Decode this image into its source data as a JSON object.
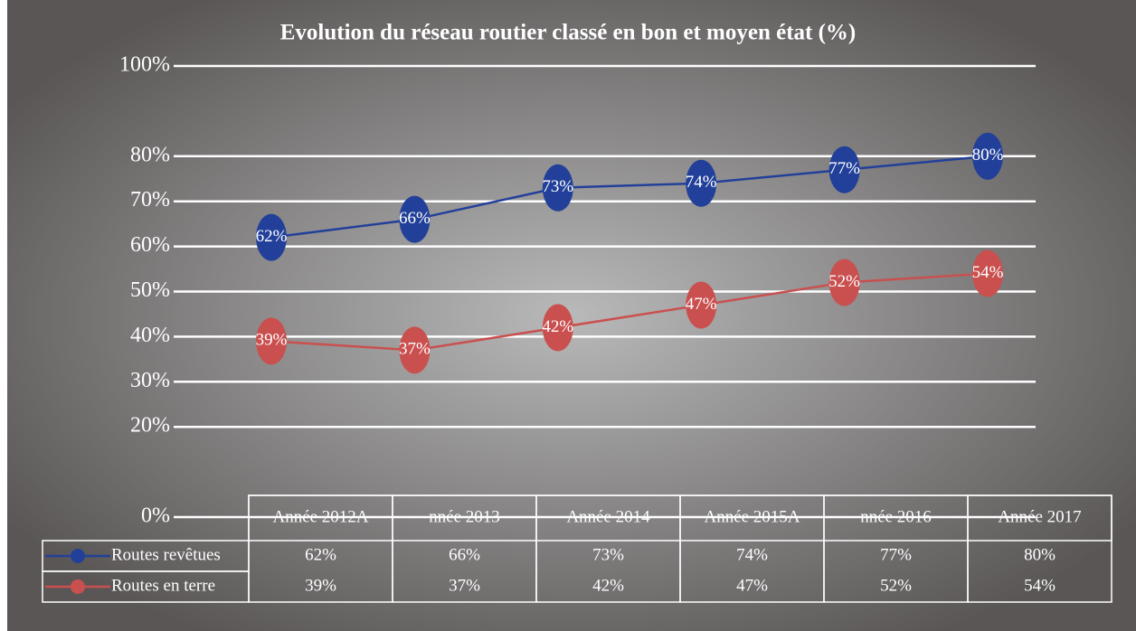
{
  "chart_data": {
    "type": "line",
    "title": "Evolution du réseau routier classé en bon et moyen état (%)",
    "categories": [
      "Année 2012A",
      "nnée 2013",
      "Année 2014",
      "Année 2015A",
      "nnée 2016",
      "Année 2017"
    ],
    "series": [
      {
        "name": "Routes revêtues",
        "color": "#22409a",
        "values": [
          62,
          66,
          73,
          74,
          77,
          80
        ],
        "value_labels": [
          "62%",
          "66%",
          "73%",
          "74%",
          "77%",
          "80%"
        ]
      },
      {
        "name": "Routes en terre",
        "color": "#c9504f",
        "values": [
          39,
          37,
          42,
          47,
          52,
          54
        ],
        "value_labels": [
          "39%",
          "37%",
          "42%",
          "47%",
          "52%",
          "54%"
        ]
      }
    ],
    "ylim": [
      0,
      100
    ],
    "yticks": [
      {
        "value": 0,
        "label": "0%"
      },
      {
        "value": 20,
        "label": "20%"
      },
      {
        "value": 30,
        "label": "30%"
      },
      {
        "value": 40,
        "label": "40%"
      },
      {
        "value": 50,
        "label": "50%"
      },
      {
        "value": 60,
        "label": "60%"
      },
      {
        "value": 70,
        "label": "70%"
      },
      {
        "value": 80,
        "label": "80%"
      },
      {
        "value": 100,
        "label": "100%"
      }
    ],
    "grid": true
  }
}
